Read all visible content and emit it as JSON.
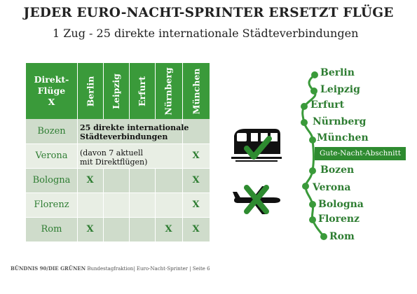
{
  "title": "JEDER EURO-NACHT-SPRINTER ERSETZT FLÜGE",
  "subtitle": "1 Zug - 25 direkte internationale Städteverbindungen",
  "table": {
    "corner_line1": "Direkt-",
    "corner_line2": "Flüge",
    "corner_line3": "X",
    "columns": [
      "Berlin",
      "Leipzig",
      "Erfurt",
      "Nürnberg",
      "München"
    ],
    "rows": [
      {
        "label": "Bozen",
        "marks": [
          "",
          "",
          "",
          "",
          ""
        ]
      },
      {
        "label": "Verona",
        "marks": [
          "",
          "",
          "",
          "",
          "X"
        ]
      },
      {
        "label": "Bologna",
        "marks": [
          "X",
          "",
          "",
          "",
          "X"
        ]
      },
      {
        "label": "Florenz",
        "marks": [
          "",
          "",
          "",
          "",
          "X"
        ]
      },
      {
        "label": "Rom",
        "marks": [
          "X",
          "",
          "",
          "X",
          "X"
        ]
      }
    ],
    "note_line1": "25 direkte internationale",
    "note_line2": "Städteverbindungen",
    "note_sub_line1": "(davon 7 aktuell",
    "note_sub_line2": "mit Direktflügen)"
  },
  "icons": {
    "train": "train-check-icon",
    "plane": "plane-crossed-icon"
  },
  "colors": {
    "green": "#3a9a3a",
    "dark_green": "#2e7d32",
    "row_dark": "#cfdccb",
    "row_light": "#e8eee4"
  },
  "route": {
    "stops": [
      "Berlin",
      "Leipzig",
      "Erfurt",
      "Nürnberg",
      "München",
      "Bozen",
      "Verona",
      "Bologna",
      "Florenz",
      "Rom"
    ],
    "badge": "Gute-Nacht-Abschnitt"
  },
  "footer": {
    "bold": "BÜNDNIS 90/DIE GRÜNEN",
    "text": " Bundestagfraktion| Euro-Nacht-Sprinter | Seite 6"
  }
}
